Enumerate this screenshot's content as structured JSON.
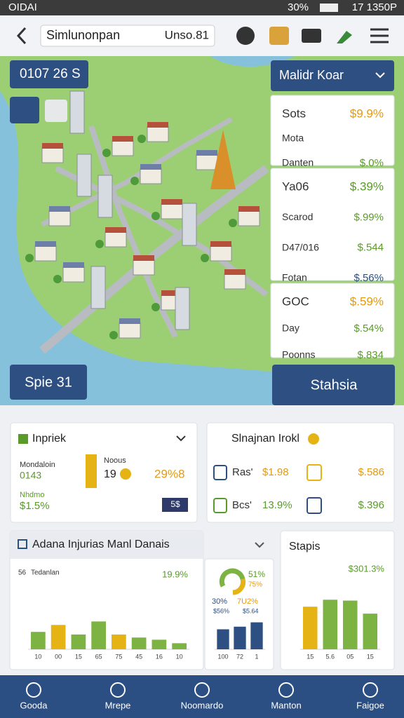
{
  "status_bar": {
    "carrier": "OIDAI",
    "battery": "30%",
    "time": "17 1350P"
  },
  "top_bar": {
    "search": "Simlunonpan",
    "search_tag": "Unso.81"
  },
  "map": {
    "coords": "0107 26 S",
    "dropdown": "Malidr Koar",
    "left_button": "Spie 31",
    "right_button": "Stahsia",
    "cards": [
      {
        "rows": [
          {
            "label": "Sots",
            "value": "$9.9%",
            "color": "#e39a12"
          },
          {
            "label": "Mota"
          },
          {
            "label": "Danten",
            "value": "$.0%",
            "color": "#5a9a2a"
          }
        ]
      },
      {
        "rows": [
          {
            "label": "Ya06",
            "value": "$.39%",
            "color": "#5a9a2a"
          },
          {
            "label": "Scarod",
            "value": "$.99%",
            "color": "#5a9a2a"
          },
          {
            "label": "D47/016",
            "value": "$.544",
            "color": "#5a9a2a"
          },
          {
            "label": "Fotan",
            "value": "$.56%",
            "color": "#2d4f82"
          }
        ]
      },
      {
        "rows": [
          {
            "label": "GOC",
            "value": "$.59%",
            "color": "#e39a12"
          },
          {
            "label": "Day",
            "value": "$.54%",
            "color": "#5a9a2a"
          },
          {
            "label": "Poonns",
            "value": "$.834",
            "color": "#5a9a2a"
          }
        ]
      }
    ]
  },
  "impact": {
    "title": "Inpriek",
    "label1": "Mondaloin",
    "value1": "0143",
    "label2": "Nhdmo",
    "value2": "$1.5%",
    "label3": "Noous",
    "value3": "19",
    "value4": "29%8",
    "badge": "5$"
  },
  "sales": {
    "title": "Slnajnan Irokl",
    "rows": [
      {
        "label": "Ras'",
        "value": "$1.98",
        "extra": "$.586"
      },
      {
        "label": "Bcs'",
        "value": "13.9%",
        "extra": "$.396"
      }
    ]
  },
  "chart1": {
    "title": "Adana Injurias Manl Danais",
    "axis_label": "56",
    "legend": "Tedanlan",
    "headline": "19.9%",
    "values": [
      40,
      56,
      34,
      64,
      34,
      27,
      22,
      14
    ],
    "colors": [
      "#7cb342",
      "#e5b313",
      "#7cb342",
      "#7cb342",
      "#e5b313",
      "#7cb342",
      "#7cb342",
      "#7cb342"
    ],
    "x_labels": [
      "10",
      "00",
      "15",
      "65",
      "75",
      "45",
      "16",
      "10"
    ]
  },
  "chart2": {
    "donut_label": "51%",
    "donut_sub": "75%",
    "left": "30%",
    "mid": "7U2%",
    "sub1": "$56%",
    "sub2": "$5.64",
    "values": [
      46,
      52,
      62
    ],
    "colors": [
      "#2d4f82",
      "#2d4f82",
      "#2d4f82"
    ],
    "x_labels": [
      "100",
      "72",
      "1"
    ]
  },
  "chart3": {
    "title": "Stapis",
    "headline": "$301.3%",
    "values": [
      98,
      114,
      112,
      82
    ],
    "colors": [
      "#e5b313",
      "#7cb342",
      "#7cb342",
      "#7cb342"
    ],
    "x_labels": [
      "15",
      "5.6",
      "05",
      "15"
    ]
  },
  "nav": [
    "Gooda",
    "Mrepe",
    "Noomardo",
    "Manton",
    "Faigoe"
  ]
}
